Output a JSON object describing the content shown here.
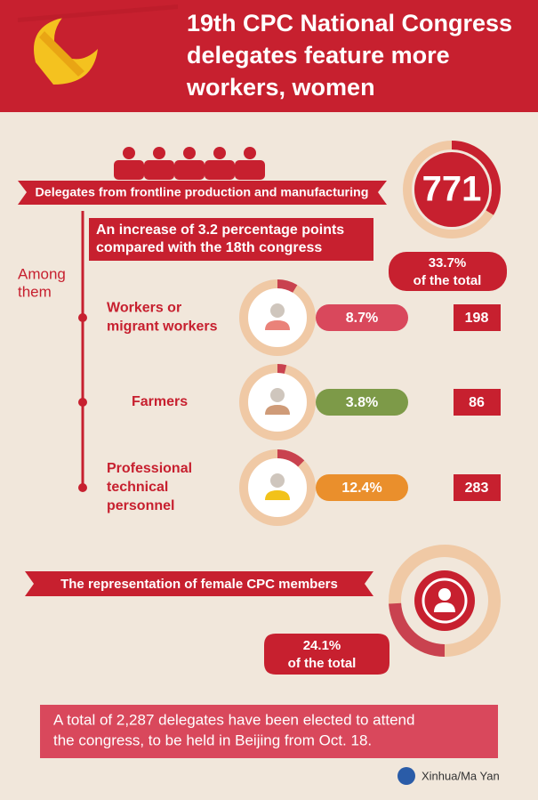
{
  "header": {
    "title_lines": [
      "19th CPC National Congress",
      "delegates feature more",
      "workers, women"
    ]
  },
  "frontline": {
    "banner": "Delegates from frontline production and manufacturing",
    "count": 771,
    "share": 33.7,
    "share_label": "33.7%",
    "share_caption": "of the total",
    "increase_lines": [
      "An increase of 3.2 percentage points",
      "compared with the 18th congress"
    ]
  },
  "among_lines": [
    "Among",
    "them"
  ],
  "groups": [
    {
      "label_lines": [
        "Workers or",
        "migrant workers"
      ],
      "share": 8.7,
      "share_label": "8.7%",
      "count": 198,
      "color": "#d9485c",
      "icon_color": "#ea8279"
    },
    {
      "label_lines": [
        "Farmers"
      ],
      "share": 3.8,
      "share_label": "3.8%",
      "count": 86,
      "color": "#7d9a48",
      "icon_color": "#cf9b78"
    },
    {
      "label_lines": [
        "Professional",
        "technical",
        "personnel"
      ],
      "share": 12.4,
      "share_label": "12.4%",
      "count": 283,
      "color": "#ea8f2c",
      "icon_color": "#f2c21a"
    }
  ],
  "female": {
    "banner": "The representation of female CPC members",
    "share": 24.1,
    "share_label": "24.1%",
    "share_caption": "of the total"
  },
  "footer": {
    "note_lines": [
      "A total of 2,287 delegates have been elected to attend",
      "the congress, to be held in Beijing from Oct. 18."
    ],
    "credit": "Xinhua/Ma Yan"
  }
}
